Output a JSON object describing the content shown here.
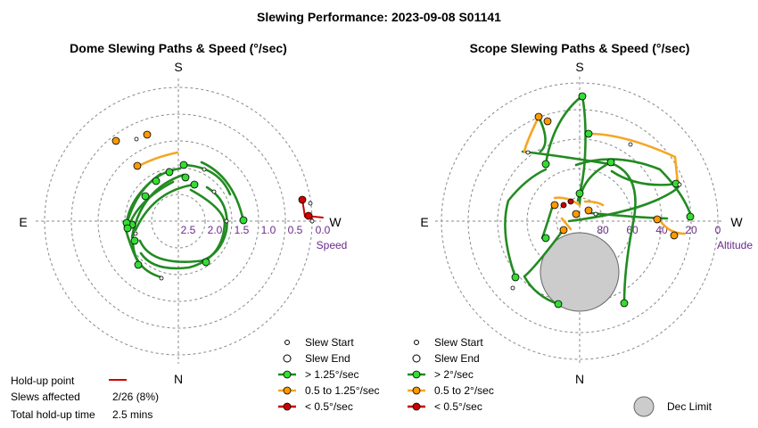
{
  "title": "Slewing Performance: 2023-09-08 S01141",
  "colors": {
    "fast": "#228B22",
    "fast_fill": "#33dd33",
    "mid": "#f5a623",
    "mid_fill": "#ff9900",
    "slow": "#cc0000",
    "grid": "#888888",
    "dec_fill": "#cccccc",
    "axis_label": "#6a2a8a"
  },
  "dome": {
    "title": "Dome Slewing Paths & Speed (°/sec)",
    "cardinals": {
      "top": "S",
      "bottom": "N",
      "left": "E",
      "right": "W"
    },
    "ring_labels": [
      "2.5",
      "2.0",
      "1.5",
      "1.0",
      "0.5",
      "0.0"
    ],
    "axis_name": "Speed",
    "legend": {
      "start": "Slew Start",
      "end": "Slew End",
      "fast": "> 1.25°/sec",
      "mid": "0.5 to 1.25°/sec",
      "slow": "< 0.5°/sec"
    }
  },
  "scope": {
    "title": "Scope Slewing Paths & Speed (°/sec)",
    "cardinals": {
      "top": "S",
      "bottom": "N",
      "left": "E",
      "right": "W"
    },
    "ring_labels": [
      "80",
      "60",
      "40",
      "20",
      "0"
    ],
    "axis_name": "Altitude",
    "legend": {
      "start": "Slew Start",
      "end": "Slew End",
      "fast": "> 2°/sec",
      "mid": "0.5 to 2°/sec",
      "slow": "< 0.5°/sec"
    },
    "dec_limit_label": "Dec Limit"
  },
  "stats": {
    "holdup_label": "Hold-up point",
    "slews_label": "Slews affected",
    "slews_value": "2/26 (8%)",
    "total_label": "Total hold-up time",
    "total_value": "2.5 mins"
  },
  "chart_data": [
    {
      "type": "scatter",
      "title": "Dome Slewing Paths & Speed (°/sec)",
      "axis": "Speed",
      "radial_ticks": [
        2.5,
        2.0,
        1.5,
        1.0,
        0.5,
        0.0
      ],
      "note": "polar plot: angle = azimuth, radius = slew speed; 26 slews, 2 with hold-up"
    },
    {
      "type": "scatter",
      "title": "Scope Slewing Paths & Speed (°/sec)",
      "axis": "Altitude",
      "radial_ticks": [
        80,
        60,
        40,
        20,
        0
      ],
      "note": "polar plot: angle = azimuth, radius = altitude"
    }
  ]
}
